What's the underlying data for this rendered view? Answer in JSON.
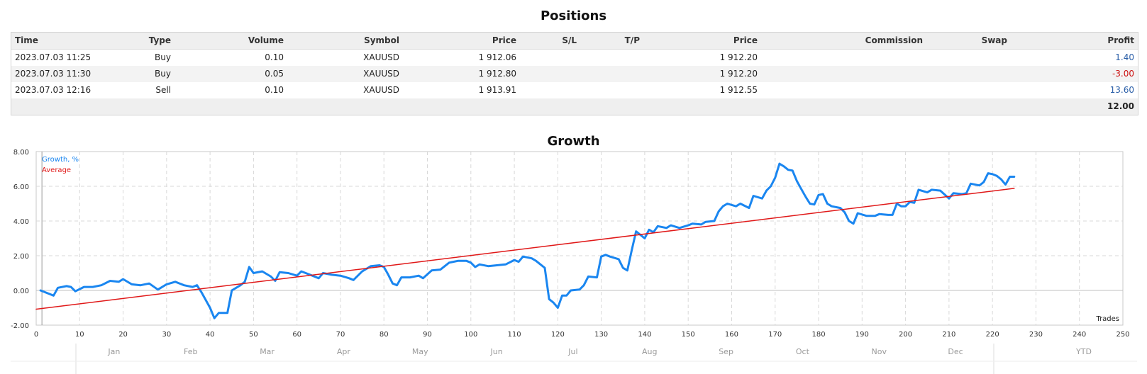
{
  "positions": {
    "title": "Positions",
    "headers": {
      "time": "Time",
      "type": "Type",
      "volume": "Volume",
      "symbol": "Symbol",
      "price_open": "Price",
      "sl": "S/L",
      "tp": "T/P",
      "price_current": "Price",
      "commission": "Commission",
      "swap": "Swap",
      "profit": "Profit"
    },
    "rows": [
      {
        "time": "2023.07.03 11:25",
        "type": "Buy",
        "volume": "0.10",
        "symbol": "XAUUSD",
        "price_open": "1 912.06",
        "sl": "",
        "tp": "",
        "price_current": "1 912.20",
        "commission": "",
        "swap": "",
        "profit": "1.40",
        "profit_color": "#2b5fa8"
      },
      {
        "time": "2023.07.03 11:30",
        "type": "Buy",
        "volume": "0.05",
        "symbol": "XAUUSD",
        "price_open": "1 912.80",
        "sl": "",
        "tp": "",
        "price_current": "1 912.20",
        "commission": "",
        "swap": "",
        "profit": "-3.00",
        "profit_color": "#cc1111"
      },
      {
        "time": "2023.07.03 12:16",
        "type": "Sell",
        "volume": "0.10",
        "symbol": "XAUUSD",
        "price_open": "1 913.91",
        "sl": "",
        "tp": "",
        "price_current": "1 912.55",
        "commission": "",
        "swap": "",
        "profit": "13.60",
        "profit_color": "#2b5fa8"
      }
    ],
    "total_profit": "12.00"
  },
  "growth": {
    "title": "Growth",
    "legend": [
      {
        "label": "Growth, %",
        "color": "#1a86f0"
      },
      {
        "label": "Average",
        "color": "#e01818"
      }
    ],
    "corner_label": "Trades",
    "month_labels": [
      "Jan",
      "Feb",
      "Mar",
      "Apr",
      "May",
      "Jun",
      "Jul",
      "Aug",
      "Sep",
      "Oct",
      "Nov",
      "Dec"
    ],
    "ytd_label": "YTD"
  },
  "chart_data": {
    "type": "line",
    "title": "Growth",
    "xlabel": "Trades",
    "ylabel": "",
    "xlim": [
      0,
      250
    ],
    "ylim": [
      -2,
      8
    ],
    "x_ticks": [
      0,
      10,
      20,
      30,
      40,
      50,
      60,
      70,
      80,
      90,
      100,
      110,
      120,
      130,
      140,
      150,
      160,
      170,
      180,
      190,
      200,
      210,
      220,
      230,
      240,
      250
    ],
    "y_tick_labels": [
      "8.00",
      "6.00",
      "4.00",
      "2.00",
      "0.00",
      "-2.00"
    ],
    "y_ticks": [
      8,
      6,
      4,
      2,
      0,
      -2
    ],
    "grid": true,
    "legend_position": "top-left",
    "series": [
      {
        "name": "Growth, %",
        "color": "#1a86f0",
        "points": [
          [
            1,
            0
          ],
          [
            3,
            -0.2
          ],
          [
            4,
            -0.3
          ],
          [
            5,
            0.15
          ],
          [
            7,
            0.25
          ],
          [
            8,
            0.2
          ],
          [
            9,
            -0.05
          ],
          [
            11,
            0.2
          ],
          [
            13,
            0.2
          ],
          [
            15,
            0.3
          ],
          [
            17,
            0.55
          ],
          [
            19,
            0.5
          ],
          [
            20,
            0.65
          ],
          [
            22,
            0.35
          ],
          [
            24,
            0.3
          ],
          [
            26,
            0.4
          ],
          [
            28,
            0.05
          ],
          [
            30,
            0.35
          ],
          [
            32,
            0.5
          ],
          [
            34,
            0.3
          ],
          [
            36,
            0.2
          ],
          [
            37,
            0.3
          ],
          [
            38,
            -0.1
          ],
          [
            40,
            -1.0
          ],
          [
            41,
            -1.6
          ],
          [
            42,
            -1.3
          ],
          [
            44,
            -1.3
          ],
          [
            45,
            0.0
          ],
          [
            47,
            0.3
          ],
          [
            48,
            0.5
          ],
          [
            49,
            1.35
          ],
          [
            50,
            1.0
          ],
          [
            52,
            1.1
          ],
          [
            54,
            0.8
          ],
          [
            55,
            0.55
          ],
          [
            56,
            1.05
          ],
          [
            58,
            1.0
          ],
          [
            60,
            0.85
          ],
          [
            61,
            1.1
          ],
          [
            63,
            0.9
          ],
          [
            65,
            0.7
          ],
          [
            66,
            1.0
          ],
          [
            68,
            0.9
          ],
          [
            70,
            0.85
          ],
          [
            72,
            0.7
          ],
          [
            73,
            0.6
          ],
          [
            75,
            1.1
          ],
          [
            77,
            1.4
          ],
          [
            79,
            1.45
          ],
          [
            80,
            1.35
          ],
          [
            81,
            0.9
          ],
          [
            82,
            0.4
          ],
          [
            83,
            0.3
          ],
          [
            84,
            0.75
          ],
          [
            86,
            0.75
          ],
          [
            88,
            0.85
          ],
          [
            89,
            0.7
          ],
          [
            91,
            1.15
          ],
          [
            93,
            1.2
          ],
          [
            95,
            1.6
          ],
          [
            97,
            1.7
          ],
          [
            99,
            1.7
          ],
          [
            100,
            1.6
          ],
          [
            101,
            1.35
          ],
          [
            102,
            1.5
          ],
          [
            104,
            1.4
          ],
          [
            106,
            1.45
          ],
          [
            108,
            1.5
          ],
          [
            110,
            1.75
          ],
          [
            111,
            1.65
          ],
          [
            112,
            1.95
          ],
          [
            114,
            1.85
          ],
          [
            115,
            1.7
          ],
          [
            117,
            1.3
          ],
          [
            118,
            -0.5
          ],
          [
            119,
            -0.7
          ],
          [
            120,
            -1.0
          ],
          [
            121,
            -0.3
          ],
          [
            122,
            -0.3
          ],
          [
            123,
            0.0
          ],
          [
            125,
            0.05
          ],
          [
            126,
            0.3
          ],
          [
            127,
            0.8
          ],
          [
            129,
            0.75
          ],
          [
            130,
            1.95
          ],
          [
            131,
            2.05
          ],
          [
            132,
            1.95
          ],
          [
            134,
            1.8
          ],
          [
            135,
            1.3
          ],
          [
            136,
            1.15
          ],
          [
            137,
            2.3
          ],
          [
            138,
            3.4
          ],
          [
            139,
            3.2
          ],
          [
            140,
            3.0
          ],
          [
            141,
            3.5
          ],
          [
            142,
            3.35
          ],
          [
            143,
            3.7
          ],
          [
            145,
            3.6
          ],
          [
            146,
            3.75
          ],
          [
            148,
            3.6
          ],
          [
            150,
            3.75
          ],
          [
            151,
            3.85
          ],
          [
            153,
            3.8
          ],
          [
            154,
            3.95
          ],
          [
            156,
            4.0
          ],
          [
            157,
            4.55
          ],
          [
            158,
            4.85
          ],
          [
            159,
            5.0
          ],
          [
            161,
            4.85
          ],
          [
            162,
            5.0
          ],
          [
            164,
            4.75
          ],
          [
            165,
            5.45
          ],
          [
            167,
            5.3
          ],
          [
            168,
            5.75
          ],
          [
            169,
            6.0
          ],
          [
            170,
            6.5
          ],
          [
            171,
            7.3
          ],
          [
            172,
            7.15
          ],
          [
            173,
            6.95
          ],
          [
            174,
            6.9
          ],
          [
            175,
            6.3
          ],
          [
            176,
            5.85
          ],
          [
            177,
            5.4
          ],
          [
            178,
            5.0
          ],
          [
            179,
            4.95
          ],
          [
            180,
            5.5
          ],
          [
            181,
            5.55
          ],
          [
            182,
            5.0
          ],
          [
            183,
            4.85
          ],
          [
            185,
            4.75
          ],
          [
            186,
            4.5
          ],
          [
            187,
            4.0
          ],
          [
            188,
            3.85
          ],
          [
            189,
            4.45
          ],
          [
            191,
            4.3
          ],
          [
            193,
            4.3
          ],
          [
            194,
            4.4
          ],
          [
            196,
            4.35
          ],
          [
            197,
            4.35
          ],
          [
            198,
            5.0
          ],
          [
            199,
            4.85
          ],
          [
            200,
            4.85
          ],
          [
            201,
            5.1
          ],
          [
            202,
            5.05
          ],
          [
            203,
            5.8
          ],
          [
            205,
            5.65
          ],
          [
            206,
            5.8
          ],
          [
            208,
            5.75
          ],
          [
            210,
            5.3
          ],
          [
            211,
            5.6
          ],
          [
            213,
            5.55
          ],
          [
            214,
            5.6
          ],
          [
            215,
            6.15
          ],
          [
            217,
            6.05
          ],
          [
            218,
            6.25
          ],
          [
            219,
            6.75
          ],
          [
            220,
            6.7
          ],
          [
            221,
            6.6
          ],
          [
            222,
            6.4
          ],
          [
            223,
            6.1
          ],
          [
            224,
            6.55
          ],
          [
            225,
            6.55
          ]
        ]
      },
      {
        "name": "Average",
        "color": "#e01818",
        "points": [
          [
            0,
            -1.08
          ],
          [
            225,
            5.88
          ]
        ]
      }
    ]
  }
}
